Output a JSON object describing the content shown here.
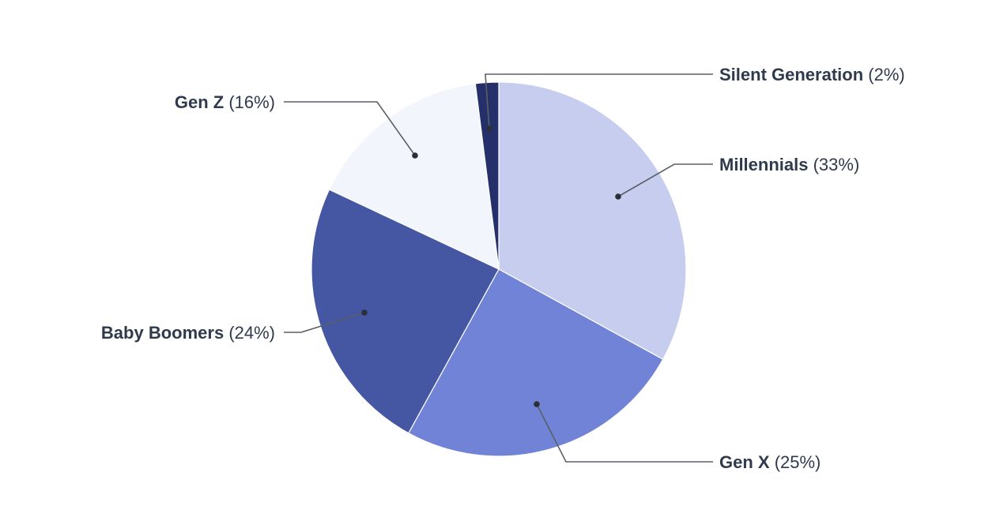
{
  "chart_data": {
    "type": "pie",
    "start_angle_deg": -4,
    "direction": "clockwise",
    "legend": "none (direct callout labels)",
    "slices": [
      {
        "label": "Millennials",
        "pct_text": "(33%)",
        "value": 33,
        "color": "#c6cdee",
        "label_side": "right"
      },
      {
        "label": "Gen X",
        "pct_text": "(25%)",
        "value": 25,
        "color": "#7083d6",
        "label_side": "right"
      },
      {
        "label": "Baby Boomers",
        "pct_text": "(24%)",
        "value": 24,
        "color": "#4557a3",
        "label_side": "left"
      },
      {
        "label": "Gen Z",
        "pct_text": "(16%)",
        "value": 16,
        "color": "#f2f5fc",
        "label_side": "left"
      },
      {
        "label": "Silent Generation",
        "pct_text": "(2%)",
        "value": 2,
        "color": "#25306b",
        "label_side": "right"
      }
    ]
  },
  "style": {
    "label_text_color": "#2f3a4c",
    "leader_line_color": "#5a5f66",
    "slice_border_color": "#ffffff"
  }
}
